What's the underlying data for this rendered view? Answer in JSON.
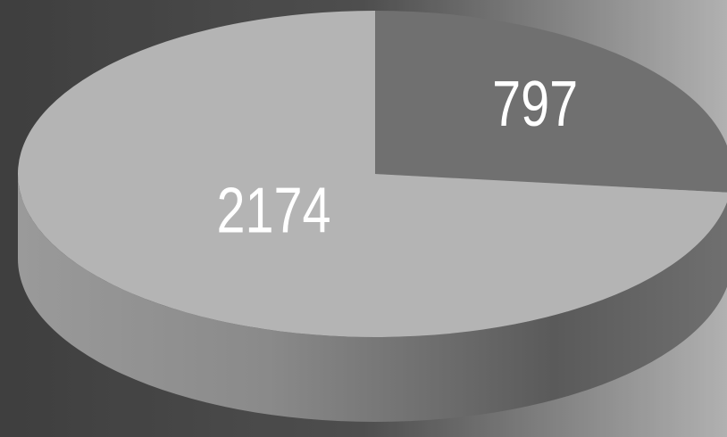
{
  "chart_data": {
    "type": "pie",
    "values": [
      797,
      2174
    ],
    "colors": [
      "#707070",
      "#b4b4b4"
    ]
  }
}
